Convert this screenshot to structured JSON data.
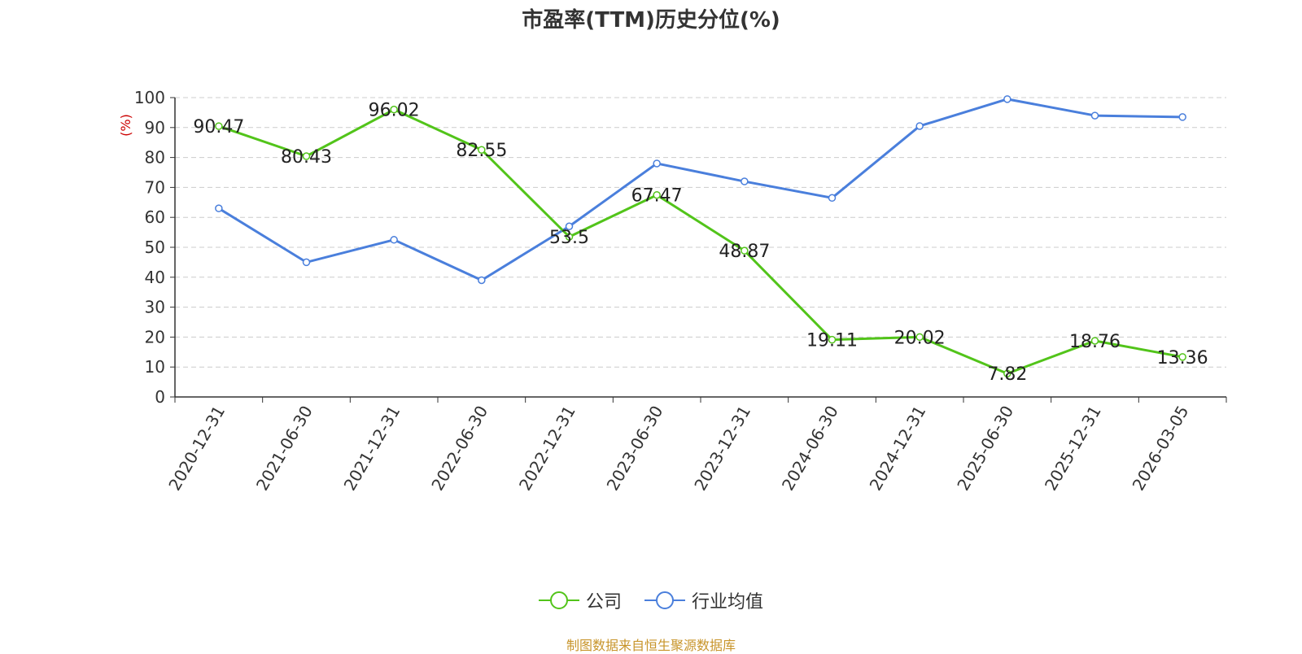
{
  "chart_data": {
    "type": "line",
    "title": "市盈率(TTM)历史分位(%)",
    "ylabel": "(%)",
    "ylim": [
      0,
      100
    ],
    "yticks": [
      0,
      10,
      20,
      30,
      40,
      50,
      60,
      70,
      80,
      90,
      100
    ],
    "grid": true,
    "legend_position": "bottom",
    "categories": [
      "2020-12-31",
      "2021-06-30",
      "2021-12-31",
      "2022-06-30",
      "2022-12-31",
      "2023-06-30",
      "2023-12-31",
      "2024-06-30",
      "2024-12-31",
      "2025-06-30",
      "2025-12-31",
      "2026-03-05"
    ],
    "series": [
      {
        "name": "公司",
        "color": "#52c41a",
        "values": [
          90.47,
          80.43,
          96.02,
          82.55,
          53.5,
          67.47,
          48.87,
          19.11,
          20.02,
          7.82,
          18.76,
          13.36
        ],
        "labels": [
          "90.47",
          "80.43",
          "96.02",
          "82.55",
          "53.5",
          "67.47",
          "48.87",
          "19.11",
          "20.02",
          "7.82",
          "18.76",
          "13.36"
        ]
      },
      {
        "name": "行业均值",
        "color": "#4a7fdc",
        "values": [
          63,
          45,
          52.5,
          39,
          57,
          78,
          72,
          66.5,
          90.5,
          99.5,
          94,
          93.5
        ]
      }
    ],
    "source": "制图数据来自恒生聚源数据库",
    "source_color": "#c8952b",
    "ylabel_color": "#cc0000"
  }
}
